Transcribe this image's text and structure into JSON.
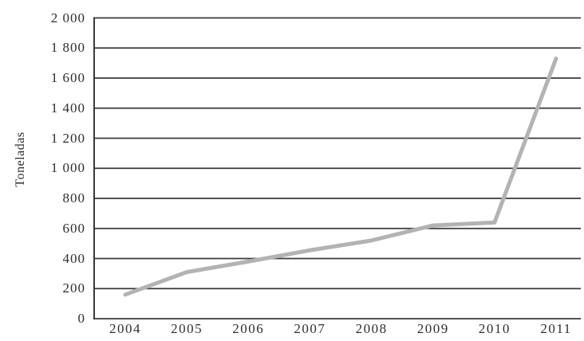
{
  "chart_data": {
    "type": "line",
    "title": "",
    "xlabel": "",
    "ylabel": "Toneladas",
    "categories": [
      "2004",
      "2005",
      "2006",
      "2007",
      "2008",
      "2009",
      "2010",
      "2011"
    ],
    "series": [
      {
        "name": "Toneladas",
        "values": [
          160,
          310,
          380,
          455,
          520,
          620,
          640,
          1730
        ]
      }
    ],
    "ylim": [
      0,
      2000
    ],
    "ytick_step": 200,
    "y_ticks": [
      {
        "value": 0,
        "label": "0"
      },
      {
        "value": 200,
        "label": "200"
      },
      {
        "value": 400,
        "label": "400"
      },
      {
        "value": 600,
        "label": "600"
      },
      {
        "value": 800,
        "label": "800"
      },
      {
        "value": 1000,
        "label": "1 000"
      },
      {
        "value": 1200,
        "label": "1 200"
      },
      {
        "value": 1400,
        "label": "1 400"
      },
      {
        "value": 1600,
        "label": "1 600"
      },
      {
        "value": 1800,
        "label": "1 800"
      },
      {
        "value": 2000,
        "label": "2 000"
      }
    ],
    "grid": "horizontal",
    "legend_position": "none",
    "colors": {
      "line": "#b3b3b5",
      "grid": "#3a3a3a",
      "axis": "#3a3a3a",
      "text": "#2e2e2e",
      "background": "#ffffff"
    }
  }
}
